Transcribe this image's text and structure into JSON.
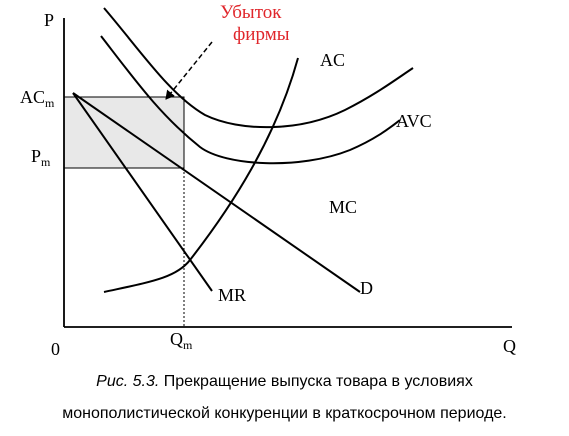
{
  "axes": {
    "y_label": "P",
    "x_label": "Q",
    "origin_label": "0",
    "ac_m_label": "AC",
    "ac_m_sub": "m",
    "p_m_label": "P",
    "p_m_sub": "m",
    "q_m_label": "Q",
    "q_m_sub": "m"
  },
  "curves": {
    "ac": "AC",
    "avc": "AVC",
    "mc": "MC",
    "d": "D",
    "mr": "MR"
  },
  "annotation": {
    "loss_line1": "Убыток",
    "loss_line2": "фирмы"
  },
  "caption": {
    "prefix": "Рис. 5.3.",
    "line1": " Прекращение выпуска товара в условиях",
    "line2": "монополистической конкуренции в краткосрочном периоде."
  },
  "colors": {
    "loss_text": "#e0262b",
    "loss_area": "#e8e8e8",
    "lines": "#000000"
  }
}
